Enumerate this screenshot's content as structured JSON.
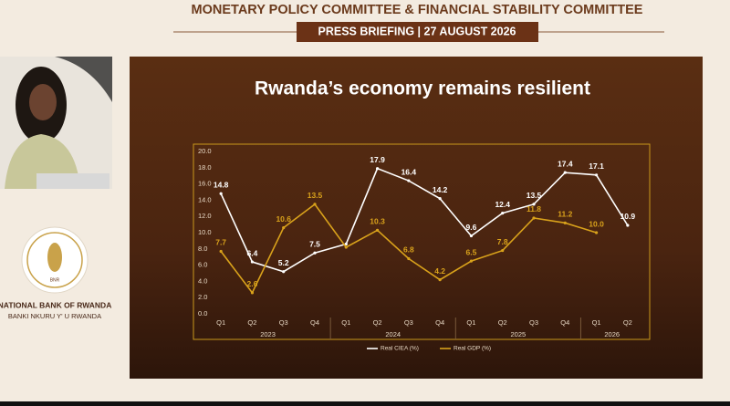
{
  "header": {
    "title": "MONETARY POLICY COMMITTEE & FINANCIAL STABILITY COMMITTEE",
    "subtitle": "PRESS BRIEFING | 27 AUGUST 2026"
  },
  "sidebar": {
    "logo_text": "BNR",
    "bank_name": "NATIONAL BANK OF RWANDA",
    "bank_name_local": "BANKI NKURU Y' U RWANDA"
  },
  "chart_data": {
    "type": "line",
    "title": "Rwanda’s economy remains resilient",
    "categories": [
      "Q1",
      "Q2",
      "Q3",
      "Q4",
      "Q1",
      "Q2",
      "Q3",
      "Q4",
      "Q1",
      "Q2",
      "Q3",
      "Q4",
      "Q1",
      "Q2"
    ],
    "year_groups": [
      {
        "label": "2023",
        "count": 4
      },
      {
        "label": "2024",
        "count": 4
      },
      {
        "label": "2025",
        "count": 4
      },
      {
        "label": "2026",
        "count": 2
      }
    ],
    "series": [
      {
        "name": "Real CIEA (%)",
        "color": "#ffffff",
        "values": [
          14.8,
          6.4,
          5.2,
          7.5,
          8.6,
          17.9,
          16.4,
          14.2,
          9.6,
          12.4,
          13.5,
          17.4,
          17.1,
          10.9
        ],
        "value_labels": [
          "14.8",
          "6.4",
          "5.2",
          "7.5",
          null,
          "17.9",
          "16.4",
          "14.2",
          "9.6",
          "12.4",
          "13.5",
          "17.4",
          "17.1",
          "10.9"
        ]
      },
      {
        "name": "Real GDP (%)",
        "color": "#d9a21b",
        "values": [
          7.7,
          2.6,
          10.6,
          13.5,
          8.2,
          10.3,
          6.8,
          4.2,
          6.5,
          7.8,
          11.8,
          11.2,
          10.0,
          null
        ],
        "value_labels": [
          "7.7",
          "2.6",
          "10.6",
          "13.5",
          null,
          "10.3",
          "6.8",
          "4.2",
          "6.5",
          "7.8",
          "11.8",
          "11.2",
          "10.0",
          null
        ]
      }
    ],
    "ylim": [
      0,
      20
    ],
    "yticks": [
      {
        "value": 0,
        "label": "0.0"
      },
      {
        "value": 2,
        "label": "2.0"
      },
      {
        "value": 4,
        "label": "4.0"
      },
      {
        "value": 6,
        "label": "6.0"
      },
      {
        "value": 8,
        "label": "8.0"
      },
      {
        "value": 10,
        "label": "10.0"
      },
      {
        "value": 12,
        "label": "12.0"
      },
      {
        "value": 14,
        "label": "14.0"
      },
      {
        "value": 16,
        "label": "16.0"
      },
      {
        "value": 18,
        "label": "18.0"
      },
      {
        "value": 20,
        "label": "20.0"
      }
    ],
    "grid": false,
    "legend": "bottom"
  }
}
